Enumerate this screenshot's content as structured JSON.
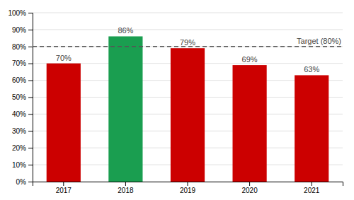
{
  "chart_data": {
    "type": "bar",
    "categories": [
      "2017",
      "2018",
      "2019",
      "2020",
      "2021"
    ],
    "values": [
      0.7,
      0.86,
      0.79,
      0.69,
      0.63
    ],
    "value_labels": [
      "70%",
      "86%",
      "79%",
      "69%",
      "63%"
    ],
    "colors": [
      "#cc0000",
      "#1a9e50",
      "#cc0000",
      "#cc0000",
      "#cc0000"
    ],
    "data_labels": true,
    "annotations": [
      {
        "label": "Target (80%)",
        "y": 0.8,
        "line_style": "dashed"
      }
    ],
    "ylim": [
      0,
      1.0
    ],
    "yticks": [
      {
        "value": 0.0,
        "label": "0%"
      },
      {
        "value": 0.1,
        "label": "10%"
      },
      {
        "value": 0.2,
        "label": "20%"
      },
      {
        "value": 0.3,
        "label": "30%"
      },
      {
        "value": 0.4,
        "label": "40%"
      },
      {
        "value": 0.5,
        "label": "50%"
      },
      {
        "value": 0.6,
        "label": "60%"
      },
      {
        "value": 0.7,
        "label": "70%"
      },
      {
        "value": 0.8,
        "label": "80%"
      },
      {
        "value": 0.9,
        "label": "90%"
      },
      {
        "value": 1.0,
        "label": "100%"
      }
    ],
    "grid": true
  }
}
